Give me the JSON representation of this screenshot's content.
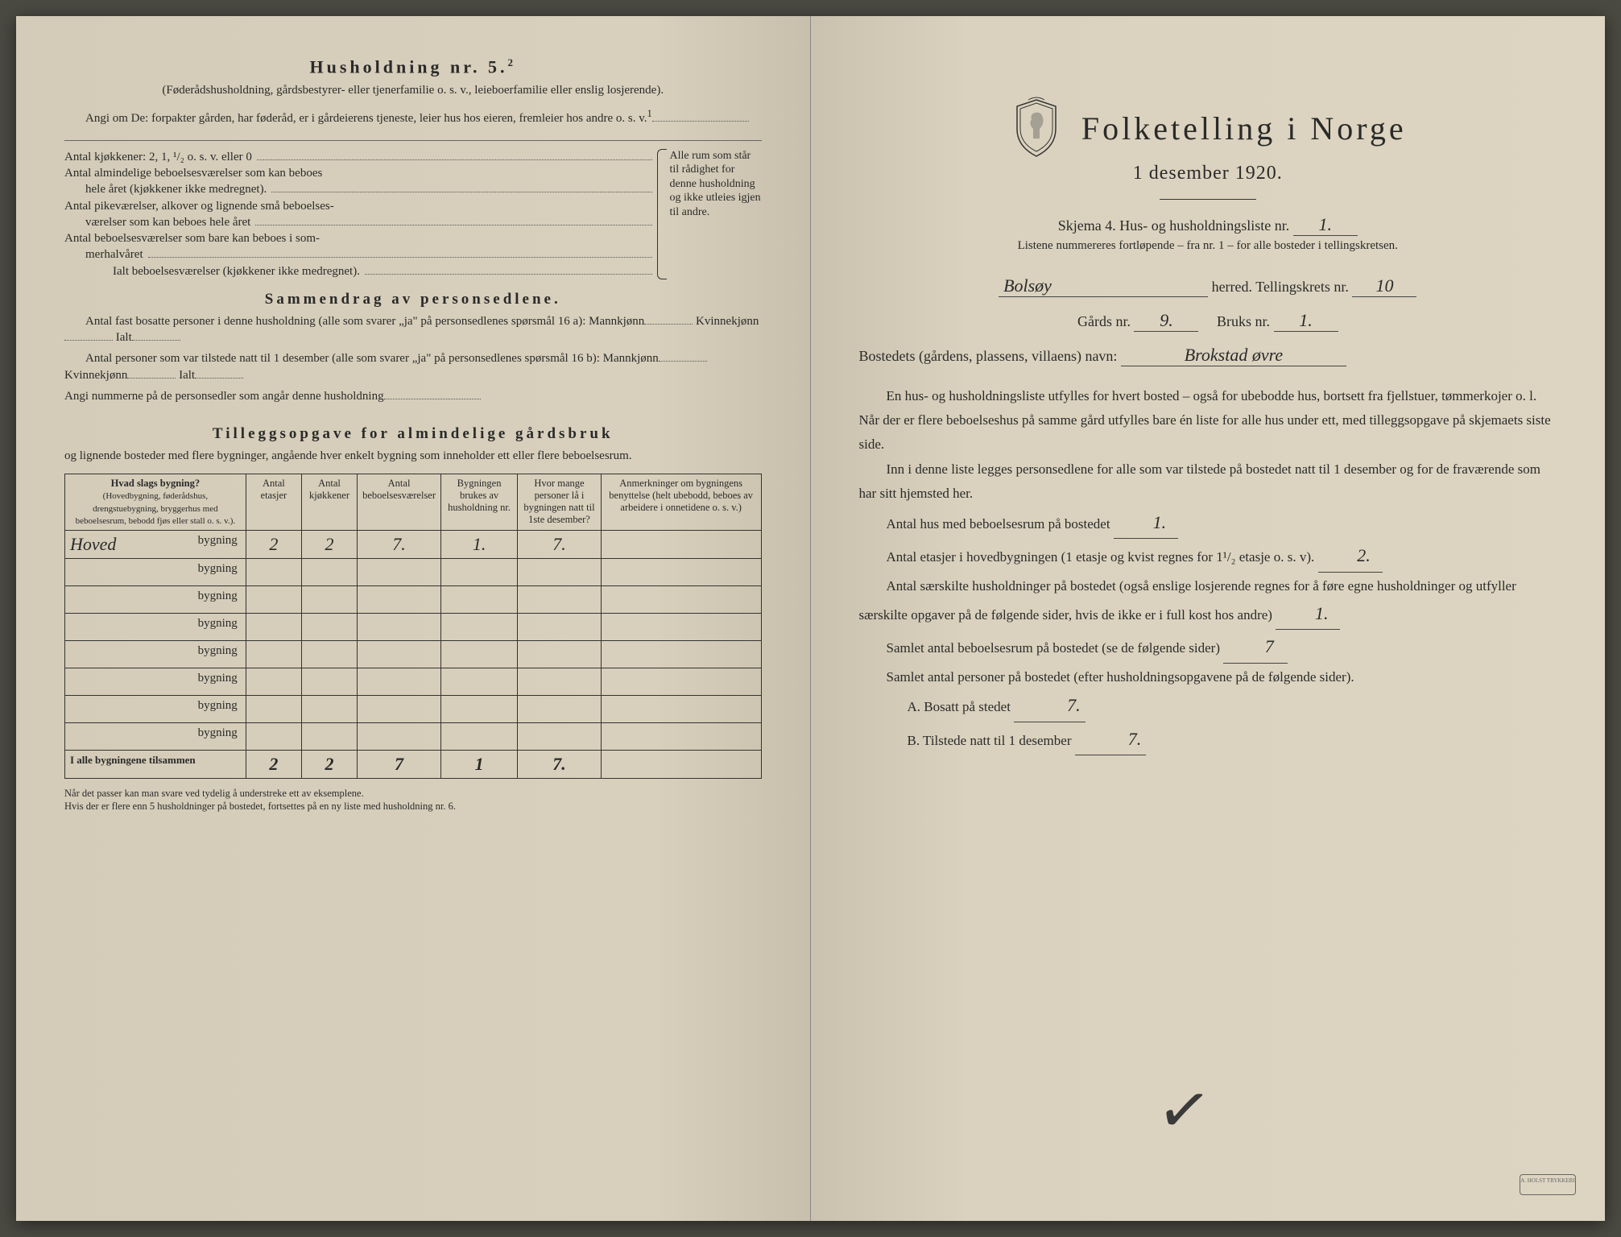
{
  "colors": {
    "paper_left": "#d4ccb8",
    "paper_right": "#ddd5c1",
    "ink": "#2a2a2a",
    "handwriting": "#2a2a2a",
    "border": "#333333"
  },
  "left": {
    "heading": "Husholdning nr. 5.",
    "heading_sup": "2",
    "paren": "(Føderådshusholdning, gårdsbestyrer- eller tjenerfamilie o. s. v., leieboerfamilie eller enslig losjerende).",
    "angi": "Angi om De: forpakter gården, har føderåd, er i gårdeierens tjeneste, leier hus hos eieren, fremleier hos andre o. s. v.",
    "angi_sup": "1",
    "rooms": {
      "l1": "Antal kjøkkener: 2, 1, ¹/₂ o. s. v. eller 0",
      "l2a": "Antal almindelige beboelsesværelser som kan beboes",
      "l2b": "hele året (kjøkkener ikke medregnet).",
      "l3a": "Antal pikeværelser, alkover og lignende små beboelses-",
      "l3b": "værelser som kan beboes hele året",
      "l4a": "Antal beboelsesværelser som bare kan beboes i som-",
      "l4b": "merhalvåret",
      "l5": "Ialt beboelsesværelser (kjøkkener ikke medregnet).",
      "right_note": "Alle rum som står til rådighet for denne husholdning og ikke utleies igjen til andre."
    },
    "sammendrag": {
      "title": "Sammendrag av personsedlene.",
      "l1": "Antal fast bosatte personer i denne husholdning (alle som svarer „ja\" på personsedlenes spørsmål 16 a): Mannkjønn",
      "kvinne": "Kvinnekjønn",
      "ialt": "Ialt",
      "l2": "Antal personer som var tilstede natt til 1 desember (alle som svarer „ja\" på personsedlenes spørsmål 16 b): Mannkjønn",
      "l3": "Angi nummerne på de personsedler som angår denne husholdning"
    },
    "tillegg": {
      "title": "Tilleggsopgave for almindelige gårdsbruk",
      "sub": "og lignende bosteder med flere bygninger, angående hver enkelt bygning som inneholder ett eller flere beboelsesrum."
    },
    "table": {
      "headers": {
        "c1a": "Hvad slags bygning?",
        "c1b": "(Hovedbygning, føderådshus, drengstuebygning, bryggerhus med beboelsesrum, bebodd fjøs eller stall o. s. v.).",
        "c2": "Antal etasjer",
        "c3": "Antal kjøkkener",
        "c4": "Antal beboelsesværelser",
        "c5": "Bygningen brukes av husholdning nr.",
        "c6": "Hvor mange personer lå i bygningen natt til 1ste desember?",
        "c7": "Anmerkninger om bygningens benyttelse (helt ubebodd, beboes av arbeidere i onnetidene o. s. v.)"
      },
      "bygning_label": "bygning",
      "rows": [
        {
          "type": "Hoved",
          "etasjer": "2",
          "kjokken": "2",
          "vaer": "7.",
          "hush": "1.",
          "pers": "7.",
          "anm": ""
        },
        {
          "type": "",
          "etasjer": "",
          "kjokken": "",
          "vaer": "",
          "hush": "",
          "pers": "",
          "anm": ""
        },
        {
          "type": "",
          "etasjer": "",
          "kjokken": "",
          "vaer": "",
          "hush": "",
          "pers": "",
          "anm": ""
        },
        {
          "type": "",
          "etasjer": "",
          "kjokken": "",
          "vaer": "",
          "hush": "",
          "pers": "",
          "anm": ""
        },
        {
          "type": "",
          "etasjer": "",
          "kjokken": "",
          "vaer": "",
          "hush": "",
          "pers": "",
          "anm": ""
        },
        {
          "type": "",
          "etasjer": "",
          "kjokken": "",
          "vaer": "",
          "hush": "",
          "pers": "",
          "anm": ""
        },
        {
          "type": "",
          "etasjer": "",
          "kjokken": "",
          "vaer": "",
          "hush": "",
          "pers": "",
          "anm": ""
        },
        {
          "type": "",
          "etasjer": "",
          "kjokken": "",
          "vaer": "",
          "hush": "",
          "pers": "",
          "anm": ""
        }
      ],
      "total_label": "I alle bygningene tilsammen",
      "totals": {
        "etasjer": "2",
        "kjokken": "2",
        "vaer": "7",
        "hush": "1",
        "pers": "7."
      }
    },
    "footnote": "Når det passer kan man svare ved tydelig å understreke ett av eksemplene.\nHvis der er flere enn 5 husholdninger på bostedet, fortsettes på en ny liste med husholdning nr. 6."
  },
  "right": {
    "main_title": "Folketelling i Norge",
    "subtitle": "1 desember 1920.",
    "schema": "Skjema 4.  Hus- og husholdningsliste nr.",
    "schema_nr": "1.",
    "schema_sub": "Listene nummereres fortløpende – fra nr. 1 – for alle bosteder i tellingskretsen.",
    "herred_label": "herred.  Tellingskrets nr.",
    "herred_value": "Bolsøy",
    "krets_nr": "10",
    "gards_label": "Gårds nr.",
    "gards_nr": "9.",
    "bruks_label": "Bruks nr.",
    "bruks_nr": "1.",
    "bosted_label": "Bostedets (gårdens, plassens, villaens) navn:",
    "bosted_value": "Brokstad øvre",
    "para1": "En hus- og husholdningsliste utfylles for hvert bosted – også for ubebodde hus, bortsett fra fjellstuer, tømmerkojer o. l.  Når der er flere beboelseshus på samme gård utfylles bare én liste for alle hus under ett, med tilleggsopgave på skjemaets siste side.",
    "para2": "Inn i denne liste legges personsedlene for alle som var tilstede på bostedet natt til 1 desember og for de fraværende som har sitt hjemsted her.",
    "q1": "Antal hus med beboelsesrum på bostedet",
    "q1_val": "1.",
    "q2": "Antal etasjer i hovedbygningen (1 etasje og kvist regnes for 1¹/₂ etasje o. s. v).",
    "q2_val": "2.",
    "q3": "Antal særskilte husholdninger på bostedet (også enslige losjerende regnes for å føre egne husholdninger og utfyller særskilte opgaver på de følgende sider, hvis de ikke er i full kost hos andre)",
    "q3_val": "1.",
    "q4": "Samlet antal beboelsesrum på bostedet (se de følgende sider)",
    "q4_val": "7",
    "q5": "Samlet antal personer på bostedet (efter husholdningsopgavene på de følgende sider).",
    "qA": "A.  Bosatt på stedet",
    "qA_val": "7.",
    "qB": "B.  Tilstede natt til 1 desember",
    "qB_val": "7."
  }
}
